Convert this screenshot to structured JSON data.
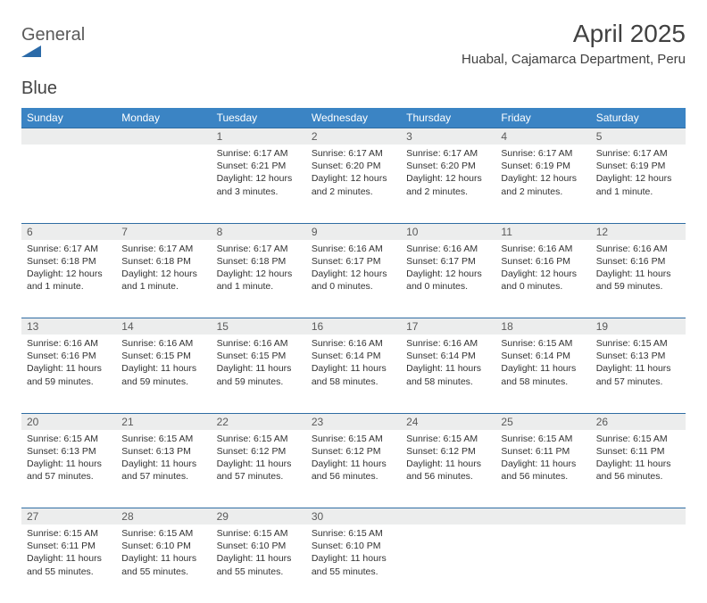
{
  "logo": {
    "word1": "General",
    "word2": "Blue"
  },
  "title": "April 2025",
  "location": "Huabal, Cajamarca Department, Peru",
  "colors": {
    "header_bg": "#3b84c4",
    "header_text": "#ffffff",
    "row_divider": "#2f6da3",
    "daynum_bg": "#eceded",
    "body_text": "#323232",
    "title_text": "#414141",
    "logo_text": "#5a5a5a",
    "logo_icon": "#2b6aa8"
  },
  "weekdays": [
    "Sunday",
    "Monday",
    "Tuesday",
    "Wednesday",
    "Thursday",
    "Friday",
    "Saturday"
  ],
  "weeks": [
    [
      null,
      null,
      {
        "n": "1",
        "sunrise": "6:17 AM",
        "sunset": "6:21 PM",
        "daylight": "12 hours and 3 minutes."
      },
      {
        "n": "2",
        "sunrise": "6:17 AM",
        "sunset": "6:20 PM",
        "daylight": "12 hours and 2 minutes."
      },
      {
        "n": "3",
        "sunrise": "6:17 AM",
        "sunset": "6:20 PM",
        "daylight": "12 hours and 2 minutes."
      },
      {
        "n": "4",
        "sunrise": "6:17 AM",
        "sunset": "6:19 PM",
        "daylight": "12 hours and 2 minutes."
      },
      {
        "n": "5",
        "sunrise": "6:17 AM",
        "sunset": "6:19 PM",
        "daylight": "12 hours and 1 minute."
      }
    ],
    [
      {
        "n": "6",
        "sunrise": "6:17 AM",
        "sunset": "6:18 PM",
        "daylight": "12 hours and 1 minute."
      },
      {
        "n": "7",
        "sunrise": "6:17 AM",
        "sunset": "6:18 PM",
        "daylight": "12 hours and 1 minute."
      },
      {
        "n": "8",
        "sunrise": "6:17 AM",
        "sunset": "6:18 PM",
        "daylight": "12 hours and 1 minute."
      },
      {
        "n": "9",
        "sunrise": "6:16 AM",
        "sunset": "6:17 PM",
        "daylight": "12 hours and 0 minutes."
      },
      {
        "n": "10",
        "sunrise": "6:16 AM",
        "sunset": "6:17 PM",
        "daylight": "12 hours and 0 minutes."
      },
      {
        "n": "11",
        "sunrise": "6:16 AM",
        "sunset": "6:16 PM",
        "daylight": "12 hours and 0 minutes."
      },
      {
        "n": "12",
        "sunrise": "6:16 AM",
        "sunset": "6:16 PM",
        "daylight": "11 hours and 59 minutes."
      }
    ],
    [
      {
        "n": "13",
        "sunrise": "6:16 AM",
        "sunset": "6:16 PM",
        "daylight": "11 hours and 59 minutes."
      },
      {
        "n": "14",
        "sunrise": "6:16 AM",
        "sunset": "6:15 PM",
        "daylight": "11 hours and 59 minutes."
      },
      {
        "n": "15",
        "sunrise": "6:16 AM",
        "sunset": "6:15 PM",
        "daylight": "11 hours and 59 minutes."
      },
      {
        "n": "16",
        "sunrise": "6:16 AM",
        "sunset": "6:14 PM",
        "daylight": "11 hours and 58 minutes."
      },
      {
        "n": "17",
        "sunrise": "6:16 AM",
        "sunset": "6:14 PM",
        "daylight": "11 hours and 58 minutes."
      },
      {
        "n": "18",
        "sunrise": "6:15 AM",
        "sunset": "6:14 PM",
        "daylight": "11 hours and 58 minutes."
      },
      {
        "n": "19",
        "sunrise": "6:15 AM",
        "sunset": "6:13 PM",
        "daylight": "11 hours and 57 minutes."
      }
    ],
    [
      {
        "n": "20",
        "sunrise": "6:15 AM",
        "sunset": "6:13 PM",
        "daylight": "11 hours and 57 minutes."
      },
      {
        "n": "21",
        "sunrise": "6:15 AM",
        "sunset": "6:13 PM",
        "daylight": "11 hours and 57 minutes."
      },
      {
        "n": "22",
        "sunrise": "6:15 AM",
        "sunset": "6:12 PM",
        "daylight": "11 hours and 57 minutes."
      },
      {
        "n": "23",
        "sunrise": "6:15 AM",
        "sunset": "6:12 PM",
        "daylight": "11 hours and 56 minutes."
      },
      {
        "n": "24",
        "sunrise": "6:15 AM",
        "sunset": "6:12 PM",
        "daylight": "11 hours and 56 minutes."
      },
      {
        "n": "25",
        "sunrise": "6:15 AM",
        "sunset": "6:11 PM",
        "daylight": "11 hours and 56 minutes."
      },
      {
        "n": "26",
        "sunrise": "6:15 AM",
        "sunset": "6:11 PM",
        "daylight": "11 hours and 56 minutes."
      }
    ],
    [
      {
        "n": "27",
        "sunrise": "6:15 AM",
        "sunset": "6:11 PM",
        "daylight": "11 hours and 55 minutes."
      },
      {
        "n": "28",
        "sunrise": "6:15 AM",
        "sunset": "6:10 PM",
        "daylight": "11 hours and 55 minutes."
      },
      {
        "n": "29",
        "sunrise": "6:15 AM",
        "sunset": "6:10 PM",
        "daylight": "11 hours and 55 minutes."
      },
      {
        "n": "30",
        "sunrise": "6:15 AM",
        "sunset": "6:10 PM",
        "daylight": "11 hours and 55 minutes."
      },
      null,
      null,
      null
    ]
  ],
  "labels": {
    "sunrise": "Sunrise:",
    "sunset": "Sunset:",
    "daylight": "Daylight:"
  }
}
